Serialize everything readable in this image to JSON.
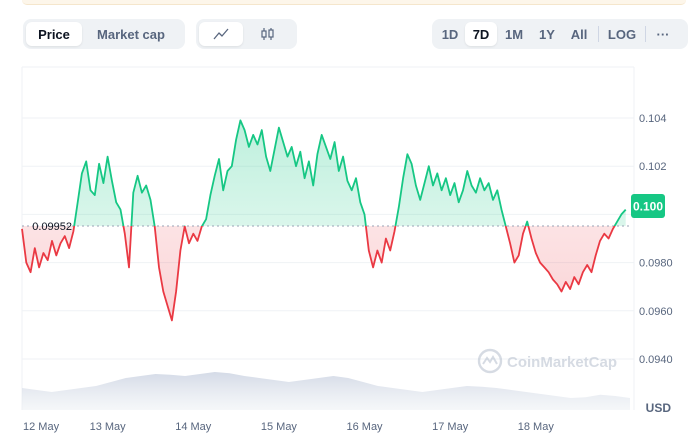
{
  "toolbar": {
    "tabs": [
      {
        "label": "Price",
        "active": true
      },
      {
        "label": "Market cap",
        "active": false
      }
    ],
    "chart_types": [
      {
        "icon": "line-chart-icon",
        "active": true
      },
      {
        "icon": "candlestick-icon",
        "active": false
      }
    ],
    "ranges": [
      {
        "label": "1D",
        "active": false
      },
      {
        "label": "7D",
        "active": true
      },
      {
        "label": "1M",
        "active": false
      },
      {
        "label": "1Y",
        "active": false
      },
      {
        "label": "All",
        "active": false
      }
    ],
    "log_label": "LOG",
    "more_label": "···"
  },
  "watermark": "CoinMarketCap",
  "currency_label": "USD",
  "colors": {
    "up": "#16c784",
    "down": "#ea3943",
    "axis_text": "#58667e"
  },
  "chart_data": {
    "type": "line",
    "title": "",
    "y_ticks": [
      "0.104",
      "0.102",
      "0.100",
      "0.0980",
      "0.0960",
      "0.0940"
    ],
    "y_tick_values": [
      0.104,
      0.102,
      0.1,
      0.098,
      0.096,
      0.094
    ],
    "ylim": [
      0.0929,
      0.1064
    ],
    "baseline": {
      "value": 0.09952,
      "label": "0.09952"
    },
    "current_price": {
      "value": 0.1,
      "label": "0.100"
    },
    "x_ticks": [
      "12 May",
      "13 May",
      "14 May",
      "15 May",
      "16 May",
      "17 May",
      "18 May"
    ],
    "x_range_days": [
      0,
      7.1
    ],
    "series": [
      {
        "values": [
          [
            0.0,
            0.0994
          ],
          [
            0.05,
            0.098
          ],
          [
            0.1,
            0.0976
          ],
          [
            0.15,
            0.0986
          ],
          [
            0.2,
            0.0978
          ],
          [
            0.25,
            0.0984
          ],
          [
            0.3,
            0.0981
          ],
          [
            0.35,
            0.0989
          ],
          [
            0.4,
            0.0983
          ],
          [
            0.45,
            0.0988
          ],
          [
            0.5,
            0.0991
          ],
          [
            0.55,
            0.0986
          ],
          [
            0.6,
            0.0993
          ],
          [
            0.65,
            0.1005
          ],
          [
            0.7,
            0.1017
          ],
          [
            0.75,
            0.1022
          ],
          [
            0.8,
            0.101
          ],
          [
            0.85,
            0.1008
          ],
          [
            0.9,
            0.1021
          ],
          [
            0.95,
            0.1013
          ],
          [
            1.0,
            0.1024
          ],
          [
            1.05,
            0.1014
          ],
          [
            1.1,
            0.1005
          ],
          [
            1.15,
            0.1002
          ],
          [
            1.2,
            0.0992
          ],
          [
            1.25,
            0.0978
          ],
          [
            1.3,
            0.1009
          ],
          [
            1.35,
            0.1016
          ],
          [
            1.4,
            0.1009
          ],
          [
            1.45,
            0.1012
          ],
          [
            1.5,
            0.1006
          ],
          [
            1.55,
            0.0995
          ],
          [
            1.6,
            0.0978
          ],
          [
            1.65,
            0.0968
          ],
          [
            1.7,
            0.0962
          ],
          [
            1.75,
            0.0956
          ],
          [
            1.8,
            0.0968
          ],
          [
            1.85,
            0.0985
          ],
          [
            1.9,
            0.0995
          ],
          [
            1.95,
            0.0988
          ],
          [
            2.0,
            0.0992
          ],
          [
            2.05,
            0.0989
          ],
          [
            2.1,
            0.0995
          ],
          [
            2.15,
            0.0998
          ],
          [
            2.2,
            0.1008
          ],
          [
            2.25,
            0.1016
          ],
          [
            2.3,
            0.1023
          ],
          [
            2.35,
            0.101
          ],
          [
            2.4,
            0.1018
          ],
          [
            2.45,
            0.102
          ],
          [
            2.5,
            0.1031
          ],
          [
            2.55,
            0.1039
          ],
          [
            2.6,
            0.1035
          ],
          [
            2.65,
            0.1028
          ],
          [
            2.7,
            0.1033
          ],
          [
            2.75,
            0.1029
          ],
          [
            2.8,
            0.1035
          ],
          [
            2.85,
            0.1024
          ],
          [
            2.9,
            0.1018
          ],
          [
            2.95,
            0.1027
          ],
          [
            3.0,
            0.1036
          ],
          [
            3.05,
            0.103
          ],
          [
            3.1,
            0.1024
          ],
          [
            3.15,
            0.1028
          ],
          [
            3.2,
            0.102
          ],
          [
            3.25,
            0.1026
          ],
          [
            3.3,
            0.1015
          ],
          [
            3.35,
            0.1022
          ],
          [
            3.4,
            0.1012
          ],
          [
            3.45,
            0.1025
          ],
          [
            3.5,
            0.1033
          ],
          [
            3.55,
            0.1028
          ],
          [
            3.6,
            0.1023
          ],
          [
            3.65,
            0.103
          ],
          [
            3.7,
            0.1018
          ],
          [
            3.75,
            0.1024
          ],
          [
            3.8,
            0.1014
          ],
          [
            3.85,
            0.101
          ],
          [
            3.9,
            0.1015
          ],
          [
            3.95,
            0.1005
          ],
          [
            4.0,
            0.1
          ],
          [
            4.05,
            0.0985
          ],
          [
            4.1,
            0.0978
          ],
          [
            4.15,
            0.0985
          ],
          [
            4.2,
            0.098
          ],
          [
            4.25,
            0.099
          ],
          [
            4.3,
            0.0985
          ],
          [
            4.35,
            0.0993
          ],
          [
            4.4,
            0.1003
          ],
          [
            4.45,
            0.1015
          ],
          [
            4.5,
            0.1025
          ],
          [
            4.55,
            0.1021
          ],
          [
            4.6,
            0.1012
          ],
          [
            4.65,
            0.1006
          ],
          [
            4.7,
            0.1013
          ],
          [
            4.75,
            0.102
          ],
          [
            4.8,
            0.1012
          ],
          [
            4.85,
            0.1017
          ],
          [
            4.9,
            0.101
          ],
          [
            4.95,
            0.1015
          ],
          [
            5.0,
            0.1008
          ],
          [
            5.05,
            0.1013
          ],
          [
            5.1,
            0.1005
          ],
          [
            5.15,
            0.101
          ],
          [
            5.2,
            0.1018
          ],
          [
            5.25,
            0.1012
          ],
          [
            5.3,
            0.1009
          ],
          [
            5.35,
            0.1015
          ],
          [
            5.4,
            0.101
          ],
          [
            5.45,
            0.1013
          ],
          [
            5.5,
            0.1006
          ],
          [
            5.55,
            0.101
          ],
          [
            5.6,
            0.1002
          ],
          [
            5.65,
            0.0995
          ],
          [
            5.7,
            0.0988
          ],
          [
            5.75,
            0.098
          ],
          [
            5.8,
            0.0983
          ],
          [
            5.85,
            0.0992
          ],
          [
            5.9,
            0.0997
          ],
          [
            5.95,
            0.099
          ],
          [
            6.0,
            0.0984
          ],
          [
            6.05,
            0.098
          ],
          [
            6.1,
            0.0978
          ],
          [
            6.15,
            0.0976
          ],
          [
            6.2,
            0.0973
          ],
          [
            6.25,
            0.0971
          ],
          [
            6.3,
            0.0968
          ],
          [
            6.35,
            0.0972
          ],
          [
            6.4,
            0.0969
          ],
          [
            6.45,
            0.0974
          ],
          [
            6.5,
            0.0971
          ],
          [
            6.55,
            0.0976
          ],
          [
            6.6,
            0.0979
          ],
          [
            6.65,
            0.0976
          ],
          [
            6.7,
            0.0983
          ],
          [
            6.75,
            0.0989
          ],
          [
            6.8,
            0.0992
          ],
          [
            6.85,
            0.099
          ],
          [
            6.9,
            0.0994
          ],
          [
            6.95,
            0.0997
          ],
          [
            7.0,
            0.1
          ],
          [
            7.05,
            0.1002
          ]
        ]
      }
    ],
    "volume_area": true
  }
}
